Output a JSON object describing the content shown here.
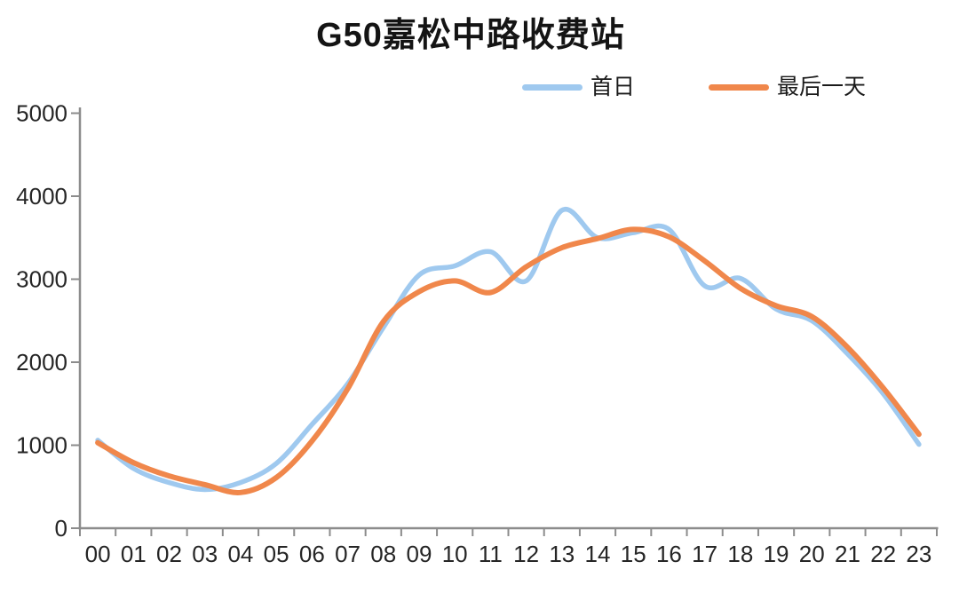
{
  "chart_data": {
    "type": "line",
    "title": "G50嘉松中路收费站",
    "x": [
      "00",
      "01",
      "02",
      "03",
      "04",
      "05",
      "06",
      "07",
      "08",
      "09",
      "10",
      "11",
      "12",
      "13",
      "14",
      "15",
      "16",
      "17",
      "18",
      "19",
      "20",
      "21",
      "22",
      "23"
    ],
    "series": [
      {
        "name": "首日",
        "color": "#9FC9EF",
        "values": [
          1060,
          720,
          550,
          465,
          550,
          780,
          1250,
          1740,
          2420,
          3050,
          3160,
          3330,
          2980,
          3830,
          3500,
          3560,
          3600,
          2920,
          3010,
          2640,
          2500,
          2100,
          1620,
          1010
        ]
      },
      {
        "name": "最后一天",
        "color": "#F0874B",
        "values": [
          1030,
          790,
          630,
          525,
          430,
          610,
          1050,
          1680,
          2490,
          2850,
          2980,
          2840,
          3150,
          3380,
          3490,
          3600,
          3510,
          3220,
          2890,
          2680,
          2550,
          2180,
          1690,
          1130
        ]
      }
    ],
    "xlabel": "",
    "ylabel": "",
    "ylim": [
      0,
      5000
    ],
    "yticks": [
      0,
      1000,
      2000,
      3000,
      4000,
      5000
    ],
    "grid": false,
    "smooth": true,
    "legend_position": "top-right",
    "axis_color": "#8C8C8C",
    "text_color": "#262626"
  }
}
